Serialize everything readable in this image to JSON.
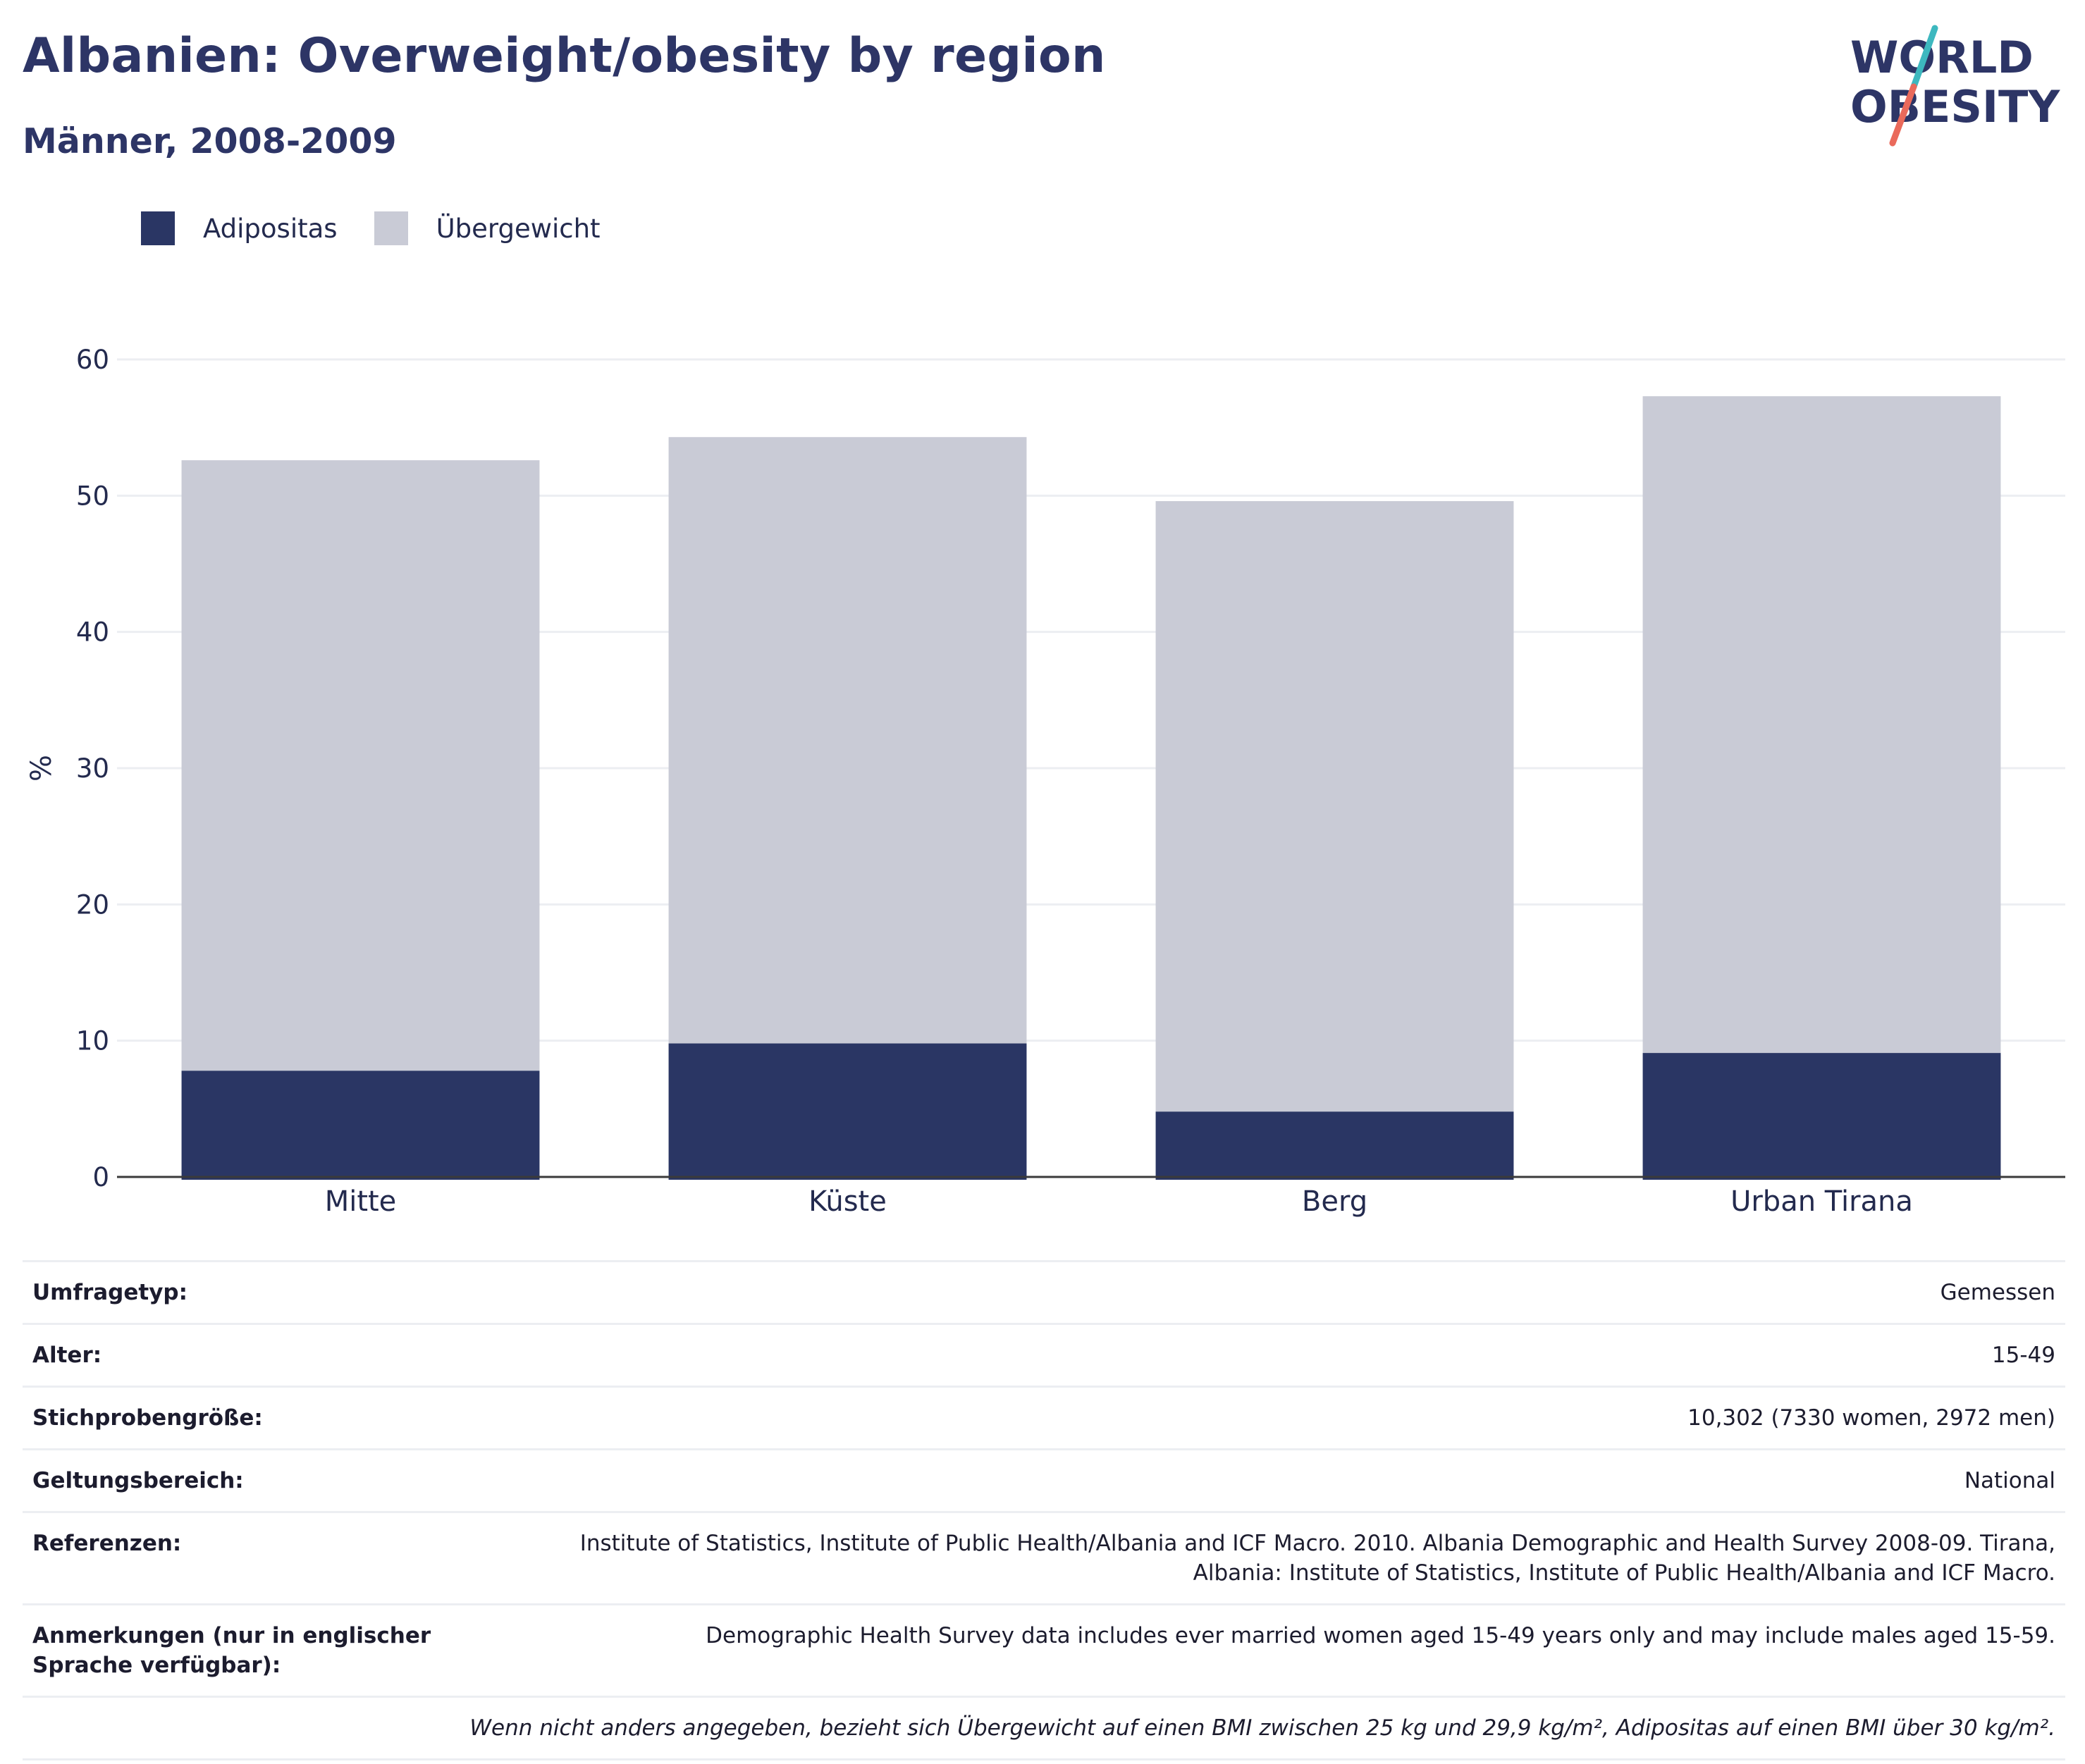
{
  "header": {
    "title": "Albanien: Overweight/obesity by region",
    "subtitle": "Männer, 2008-2009",
    "logo_line1": "WORLD",
    "logo_line2": "OBESITY"
  },
  "colors": {
    "obesity": "#2a3664",
    "overweight": "#c9cbd6",
    "text": "#232a4e",
    "grid": "#eceef2",
    "axis": "#3a3a3a",
    "logo_teal": "#3db8bf",
    "logo_coral": "#ea6a5b"
  },
  "chart_data": {
    "type": "bar",
    "stacked": true,
    "categories": [
      "Mitte",
      "Küste",
      "Berg",
      "Urban Tirana"
    ],
    "series": [
      {
        "name": "Adipositas",
        "values": [
          7.8,
          9.8,
          4.8,
          9.1
        ]
      },
      {
        "name": "Übergewicht",
        "values": [
          44.8,
          44.5,
          44.8,
          48.2
        ]
      }
    ],
    "ylabel": "%",
    "ylim": [
      0,
      60
    ],
    "yticks": [
      0,
      10,
      20,
      30,
      40,
      50,
      60
    ],
    "grid": true,
    "legend": "top-left"
  },
  "info": {
    "rows": [
      {
        "label": "Umfragetyp:",
        "value": "Gemessen"
      },
      {
        "label": "Alter:",
        "value": "15-49"
      },
      {
        "label": "Stichprobengröße:",
        "value": "10,302 (7330 women, 2972 men)"
      },
      {
        "label": "Geltungsbereich:",
        "value": "National"
      },
      {
        "label": "Referenzen:",
        "value": "Institute of Statistics, Institute of Public Health/Albania and ICF Macro. 2010. Albania Demographic and Health Survey 2008-09. Tirana, Albania: Institute of Statistics, Institute of Public Health/Albania and ICF Macro."
      },
      {
        "label": "Anmerkungen (nur in englischer Sprache verfügbar):",
        "value": "Demographic Health Survey data includes ever married women aged 15-49 years only and may include males aged 15-59."
      }
    ],
    "footnote": "Wenn nicht anders angegeben, bezieht sich Übergewicht auf einen BMI zwischen 25 kg und 29,9 kg/m², Adipositas auf einen BMI über 30 kg/m²."
  }
}
